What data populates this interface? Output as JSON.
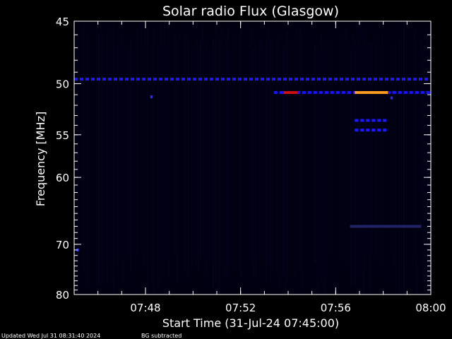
{
  "chart_data": {
    "type": "heatmap",
    "title": "Solar radio Flux (Glasgow)",
    "xlabel": "Start Time (31-Jul-24 07:45:00)",
    "ylabel": "Frequency [MHz]",
    "x_range": [
      "07:45:00",
      "08:00:00"
    ],
    "y_range_mhz": [
      45,
      80
    ],
    "y_scale": "reciprocal (frequency decreasing downward, compressed at high frequency)",
    "x_ticks": [
      {
        "label": "07:48",
        "minutes": 3
      },
      {
        "label": "07:52",
        "minutes": 7
      },
      {
        "label": "07:56",
        "minutes": 11
      },
      {
        "label": "08:00",
        "minutes": 15
      }
    ],
    "y_ticks": [
      {
        "label": "45",
        "mhz": 45
      },
      {
        "label": "50",
        "mhz": 50
      },
      {
        "label": "55",
        "mhz": 55
      },
      {
        "label": "60",
        "mhz": 60
      },
      {
        "label": "70",
        "mhz": 70
      },
      {
        "label": "80",
        "mhz": 80
      }
    ],
    "background_color": "#000010",
    "features": [
      {
        "name": "persistent band",
        "freq_mhz": 49.6,
        "t_start": 0.0,
        "t_end": 15.0,
        "color": "#1a1aff",
        "dashed": true
      },
      {
        "name": "band 51 MHz",
        "freq_mhz": 50.8,
        "t_start": 8.4,
        "t_end": 15.0,
        "color": "#1515ff",
        "dashed": true
      },
      {
        "name": "red burst",
        "freq_mhz": 50.8,
        "t_start": 8.8,
        "t_end": 9.4,
        "color": "#cc1010"
      },
      {
        "name": "orange burst",
        "freq_mhz": 50.8,
        "t_start": 11.8,
        "t_end": 13.2,
        "color": "#ff9a20"
      },
      {
        "name": "band 53.5 MHz",
        "freq_mhz": 53.5,
        "t_start": 11.8,
        "t_end": 13.2,
        "color": "#1a1aff",
        "dashed": true
      },
      {
        "name": "band 54.5 MHz",
        "freq_mhz": 54.5,
        "t_start": 11.8,
        "t_end": 13.2,
        "color": "#1a1aff",
        "dashed": true
      },
      {
        "name": "faint band 67 MHz",
        "freq_mhz": 67.0,
        "t_start": 11.6,
        "t_end": 14.6,
        "color": "#222266",
        "dashed": false
      },
      {
        "name": "blip",
        "freq_mhz": 51.2,
        "t_start": 3.2,
        "t_end": 3.3,
        "color": "#2a2aff"
      },
      {
        "name": "blip",
        "freq_mhz": 71.0,
        "t_start": 0.1,
        "t_end": 0.2,
        "color": "#3333ff"
      },
      {
        "name": "blip",
        "freq_mhz": 51.3,
        "t_start": 13.3,
        "t_end": 13.4,
        "color": "#2a2aff"
      }
    ]
  },
  "footer": {
    "updated": "Updated Wed Jul 31 08:31:40 2024",
    "bg_note": "BG subtracted"
  }
}
